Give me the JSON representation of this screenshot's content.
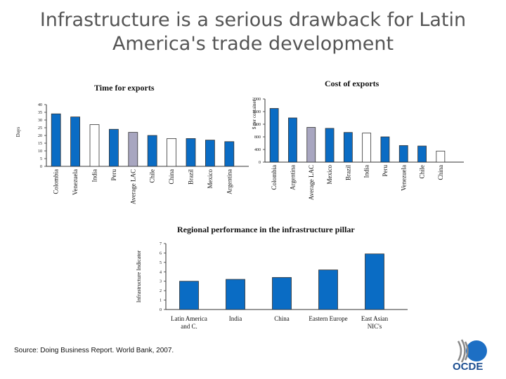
{
  "title": "Infrastructure is a serious drawback for Latin America's trade development",
  "source": "Source:  Doing Business Report. World Bank, 2007.",
  "logo_text": "OCDE",
  "colors": {
    "blue": "#0a6cc4",
    "gray": "#a8a6c0",
    "white": "#ffffff",
    "stroke": "#333333"
  },
  "chart_data": [
    {
      "id": "time",
      "type": "bar",
      "title": "Time for exports",
      "ylabel": "Days",
      "xlabel": "",
      "ylim": [
        0,
        40
      ],
      "yticks": [
        0,
        5,
        10,
        15,
        20,
        25,
        30,
        35,
        40
      ],
      "categories": [
        "Colombia",
        "Venezuela",
        "India",
        "Peru",
        "Average LAC",
        "Chile",
        "China",
        "Brazil",
        "Mexico",
        "Argentina"
      ],
      "values": [
        34,
        32,
        27,
        24,
        22,
        20,
        18,
        18,
        17,
        16
      ],
      "styles": [
        "blue",
        "blue",
        "white",
        "blue",
        "gray",
        "blue",
        "white",
        "blue",
        "blue",
        "blue"
      ]
    },
    {
      "id": "cost",
      "type": "bar",
      "title": "Cost of exports",
      "ylabel": "$ per container",
      "xlabel": "",
      "ylim": [
        0,
        2000
      ],
      "yticks": [
        0,
        400,
        800,
        1200,
        1600,
        2000
      ],
      "categories": [
        "Colombia",
        "Argentina",
        "Average LAC",
        "Mexico",
        "Brazil",
        "India",
        "Peru",
        "Venezuela",
        "Chile",
        "China"
      ],
      "values": [
        1700,
        1400,
        1100,
        1070,
        940,
        920,
        800,
        525,
        510,
        350
      ],
      "styles": [
        "blue",
        "blue",
        "gray",
        "blue",
        "blue",
        "white",
        "blue",
        "blue",
        "blue",
        "white"
      ]
    },
    {
      "id": "infra",
      "type": "bar",
      "title": "Regional performance in the infrastructure pillar",
      "ylabel": "Infrastructure Indicator",
      "xlabel": "",
      "ylim": [
        0,
        7
      ],
      "yticks": [
        0,
        1,
        2,
        3,
        4,
        5,
        6,
        7
      ],
      "categories": [
        "Latin America and C.",
        "India",
        "China",
        "Eastern Europe",
        "East Asian NIC's"
      ],
      "category_lines": [
        [
          "Latin America",
          "and C."
        ],
        [
          "India"
        ],
        [
          "China"
        ],
        [
          "Eastern Europe"
        ],
        [
          "East Asian",
          "NIC's"
        ]
      ],
      "values": [
        3.0,
        3.2,
        3.4,
        4.2,
        5.9
      ],
      "styles": [
        "blue",
        "blue",
        "blue",
        "blue",
        "blue"
      ]
    }
  ]
}
